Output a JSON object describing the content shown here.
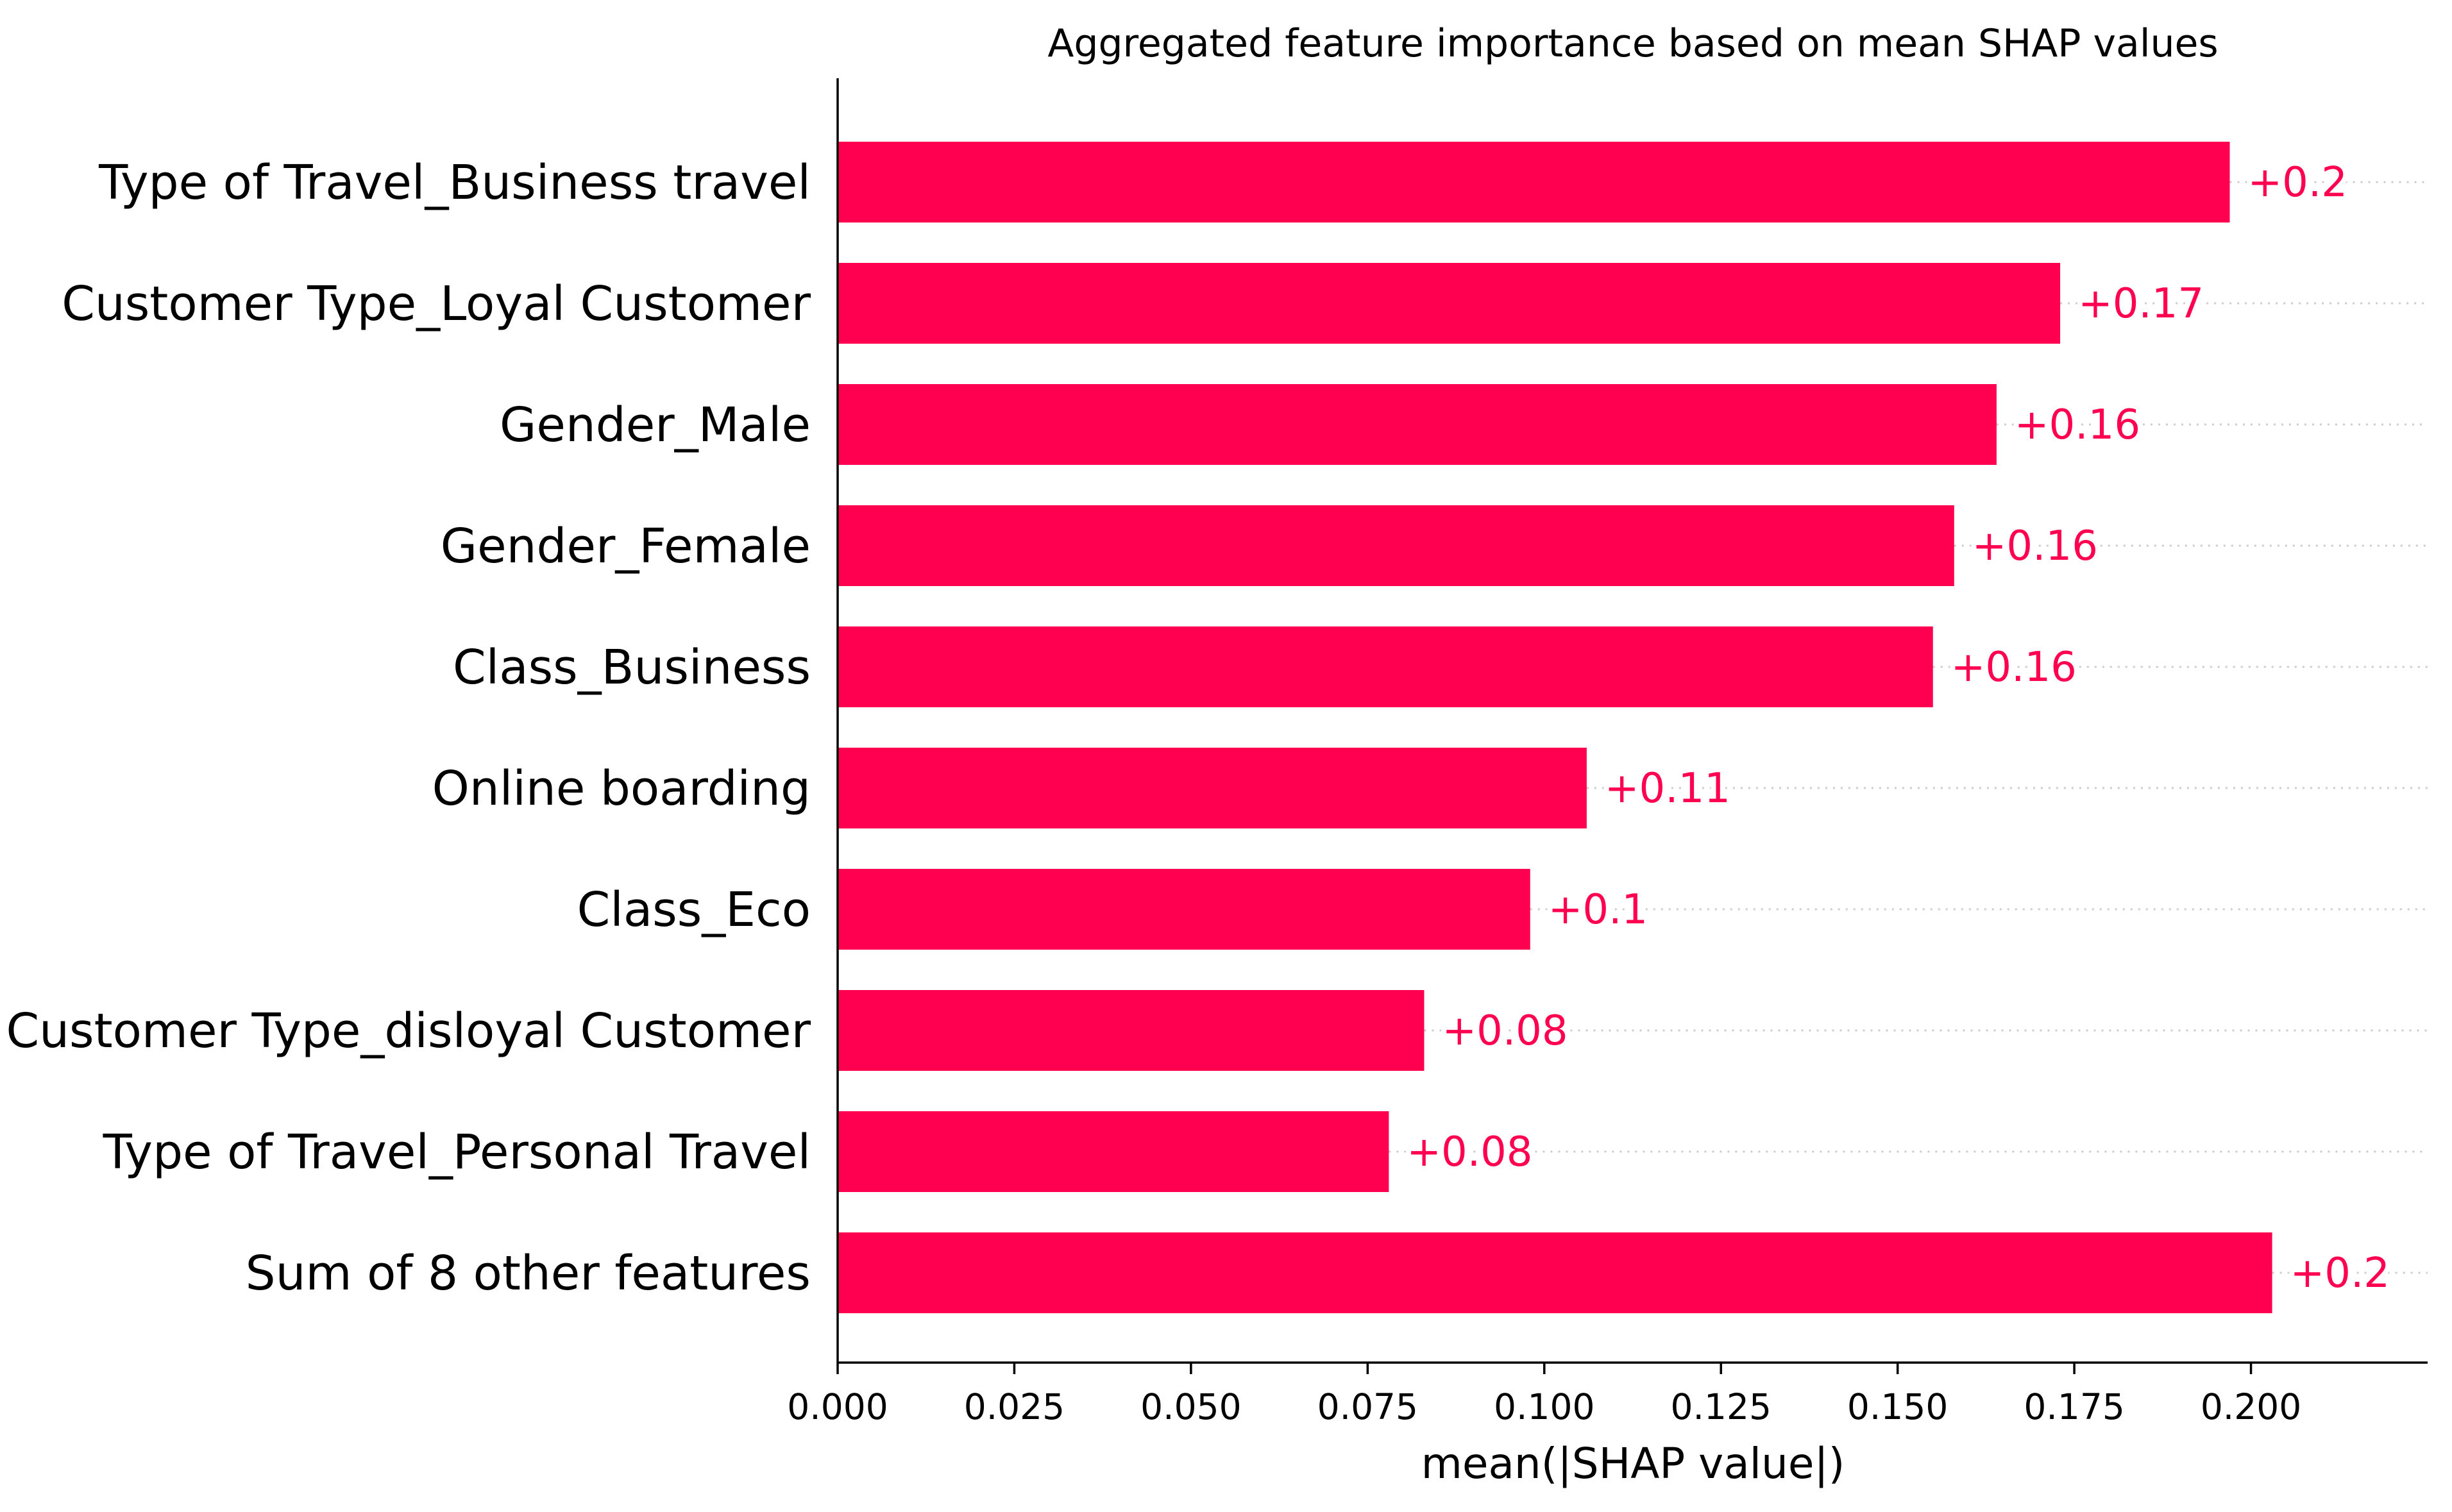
{
  "chart_data": {
    "type": "bar",
    "orientation": "horizontal",
    "title": "Aggregated feature importance based on mean SHAP values",
    "xlabel": "mean(|SHAP value|)",
    "ylabel": "",
    "xlim": [
      0,
      0.225
    ],
    "xticks": [
      "0.000",
      "0.025",
      "0.050",
      "0.075",
      "0.100",
      "0.125",
      "0.150",
      "0.175",
      "0.200"
    ],
    "xtick_values": [
      0,
      0.025,
      0.05,
      0.075,
      0.1,
      0.125,
      0.15,
      0.175,
      0.2
    ],
    "categories": [
      "Type of Travel_Business travel",
      "Customer Type_Loyal Customer",
      "Gender_Male",
      "Gender_Female",
      "Class_Business",
      "Online boarding",
      "Class_Eco",
      "Customer Type_disloyal Customer",
      "Type of Travel_Personal Travel",
      "Sum of 8 other features"
    ],
    "values": [
      0.197,
      0.173,
      0.164,
      0.158,
      0.155,
      0.106,
      0.098,
      0.083,
      0.078,
      0.203
    ],
    "value_labels": [
      "+0.2",
      "+0.17",
      "+0.16",
      "+0.16",
      "+0.16",
      "+0.11",
      "+0.1",
      "+0.08",
      "+0.08",
      "+0.2"
    ],
    "bar_color": "#ff0051",
    "grid": false,
    "guide_lines": "dotted"
  }
}
